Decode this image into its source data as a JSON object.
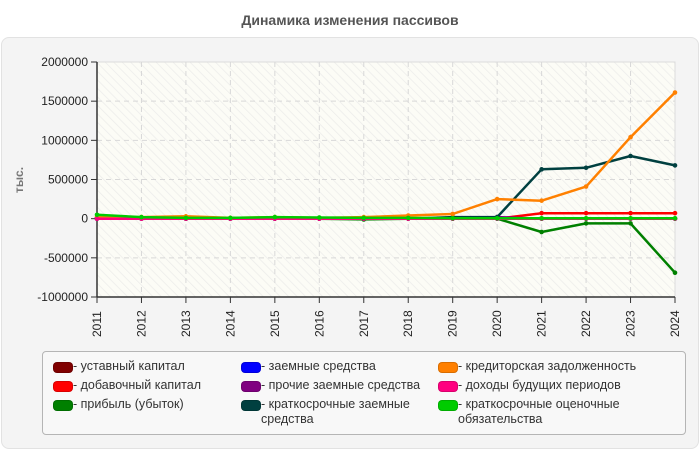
{
  "page": {
    "title": "Динамика изменения пассивов"
  },
  "chart_data": {
    "type": "line",
    "title": "Динамика изменения пассивов",
    "xlabel": "",
    "ylabel": "тыс.",
    "ylim": [
      -1000000,
      2000000
    ],
    "yticks": [
      2000000,
      1500000,
      1000000,
      500000,
      0,
      -500000,
      -1000000
    ],
    "ytick_labels": [
      "2000000",
      "1500000",
      "1000000",
      "500000",
      "0",
      "-500000",
      "-1000000"
    ],
    "grid": true,
    "legend_position": "bottom",
    "categories": [
      "2011",
      "2012",
      "2013",
      "2014",
      "2015",
      "2016",
      "2017",
      "2018",
      "2019",
      "2020",
      "2021",
      "2022",
      "2023",
      "2024"
    ],
    "series": [
      {
        "name": "уставный капитал",
        "color": "#800000",
        "values": [
          10,
          10,
          10,
          10,
          10,
          10,
          10,
          10,
          10,
          10,
          10,
          10,
          10,
          10
        ]
      },
      {
        "name": "добавочный капитал",
        "color": "#ff0000",
        "values": [
          0,
          0,
          0,
          0,
          0,
          0,
          0,
          0,
          0,
          0,
          70000,
          70000,
          70000,
          70000
        ]
      },
      {
        "name": "прибыль (убыток)",
        "color": "#008000",
        "values": [
          10000,
          10000,
          10000,
          5000,
          5000,
          0,
          -10000,
          0,
          0,
          0,
          -170000,
          -60000,
          -60000,
          -690000
        ]
      },
      {
        "name": "заемные средства",
        "color": "#0000ff",
        "values": [
          0,
          0,
          0,
          0,
          0,
          0,
          0,
          0,
          0,
          0,
          0,
          0,
          0,
          0
        ]
      },
      {
        "name": "прочие заемные средства",
        "color": "#800080",
        "values": [
          0,
          0,
          0,
          0,
          0,
          0,
          0,
          0,
          0,
          20000,
          0,
          0,
          0,
          0
        ]
      },
      {
        "name": "краткосрочные заемные средства",
        "color": "#004040",
        "values": [
          0,
          0,
          0,
          0,
          0,
          0,
          0,
          0,
          20000,
          20000,
          630000,
          650000,
          800000,
          680000
        ]
      },
      {
        "name": "кредиторская задолженность",
        "color": "#ff8000",
        "values": [
          20000,
          20000,
          30000,
          10000,
          20000,
          10000,
          20000,
          40000,
          60000,
          250000,
          230000,
          410000,
          1040000,
          1610000
        ]
      },
      {
        "name": "доходы будущих периодов",
        "color": "#ff0080",
        "values": [
          0,
          0,
          0,
          0,
          0,
          0,
          0,
          0,
          0,
          0,
          0,
          0,
          0,
          0
        ]
      },
      {
        "name": "краткосрочные оценочные обязательства",
        "color": "#00cc00",
        "values": [
          50000,
          20000,
          10000,
          10000,
          20000,
          15000,
          10000,
          10000,
          5000,
          5000,
          5000,
          5000,
          5000,
          5000
        ]
      }
    ]
  },
  "legend": {
    "columns": [
      [
        {
          "label": "- уставный капитал",
          "color": "#800000"
        },
        {
          "label": "- добавочный капитал",
          "color": "#ff0000"
        },
        {
          "label": "- прибыль (убыток)",
          "color": "#008000"
        }
      ],
      [
        {
          "label": "- заемные средства",
          "color": "#0000ff"
        },
        {
          "label": "- прочие заемные средства",
          "color": "#800080"
        },
        {
          "label": "- краткосрочные заемные средства",
          "color": "#004040"
        }
      ],
      [
        {
          "label": "- кредиторская задолженность",
          "color": "#ff8000"
        },
        {
          "label": "- доходы будущих периодов",
          "color": "#ff0080"
        },
        {
          "label": "- краткосрочные оценочные обязательства",
          "color": "#00cc00"
        }
      ]
    ]
  }
}
